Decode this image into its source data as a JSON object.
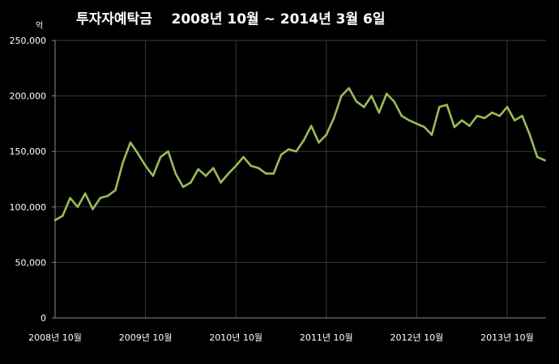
{
  "chart_data": {
    "type": "line",
    "title": "투자자예탁금    2008년 10월 ~ 2014년 3월 6일",
    "y_unit": "억",
    "ylim": [
      0,
      250000
    ],
    "y_ticks": [
      0,
      50000,
      100000,
      150000,
      200000,
      250000
    ],
    "y_tick_labels": [
      "0",
      "50,000",
      "100,000",
      "150,000",
      "200,000",
      "250,000"
    ],
    "x_tick_labels": [
      "2008년 10월",
      "2009년 10월",
      "2010년 10월",
      "2011년 10월",
      "2012년 10월",
      "2013년 10월"
    ],
    "x_ticks": [
      "2008-10",
      "2009-10",
      "2010-10",
      "2011-10",
      "2012-10",
      "2013-10"
    ],
    "xlim": [
      "2008-10",
      "2014-03-06"
    ],
    "grid": true,
    "line_color": "#9bbb59",
    "series": [
      {
        "x": [
          "2008-10",
          "2008-11",
          "2008-12",
          "2009-01",
          "2009-02",
          "2009-03",
          "2009-04",
          "2009-05",
          "2009-06",
          "2009-07",
          "2009-08",
          "2009-09",
          "2009-10",
          "2009-11",
          "2009-12",
          "2010-01",
          "2010-02",
          "2010-03",
          "2010-04",
          "2010-05",
          "2010-06",
          "2010-07",
          "2010-08",
          "2010-09",
          "2010-10",
          "2010-11",
          "2010-12",
          "2011-01",
          "2011-02",
          "2011-03",
          "2011-04",
          "2011-05",
          "2011-06",
          "2011-07",
          "2011-08",
          "2011-09",
          "2011-10",
          "2011-11",
          "2011-12",
          "2012-01",
          "2012-02",
          "2012-03",
          "2012-04",
          "2012-05",
          "2012-06",
          "2012-07",
          "2012-08",
          "2012-09",
          "2012-10",
          "2012-11",
          "2012-12",
          "2013-01",
          "2013-02",
          "2013-03",
          "2013-04",
          "2013-05",
          "2013-06",
          "2013-07",
          "2013-08",
          "2013-09",
          "2013-10",
          "2013-11",
          "2013-12",
          "2014-01",
          "2014-02",
          "2014-03"
        ],
        "values": [
          88000,
          92000,
          108000,
          100000,
          112000,
          98000,
          108000,
          110000,
          115000,
          140000,
          158000,
          148000,
          137000,
          128000,
          145000,
          150000,
          130000,
          118000,
          122000,
          134000,
          128000,
          135000,
          122000,
          130000,
          137000,
          145000,
          137000,
          135000,
          130000,
          130000,
          147000,
          152000,
          150000,
          160000,
          173000,
          158000,
          165000,
          180000,
          200000,
          207000,
          195000,
          190000,
          200000,
          185000,
          202000,
          195000,
          182000,
          178000,
          175000,
          172000,
          165000,
          190000,
          192000,
          172000,
          178000,
          173000,
          182000,
          180000,
          185000,
          182000,
          190000,
          178000,
          182000,
          165000,
          145000,
          142000
        ]
      }
    ]
  }
}
